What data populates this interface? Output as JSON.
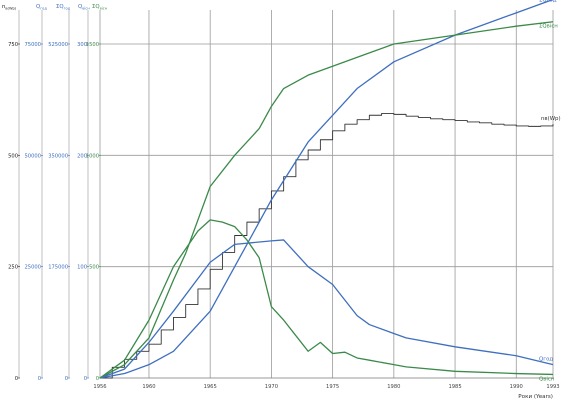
{
  "chart_data": {
    "type": "line",
    "title": "",
    "xlabel": "Роки (Years)",
    "xlim": [
      1956,
      1993
    ],
    "x_ticks": [
      "1956",
      "1960",
      "1965",
      "1970",
      "1975",
      "1980",
      "1985",
      "1990",
      "1993"
    ],
    "grid": true,
    "axes": [
      {
        "label": "n",
        "label_sub": "в(Wр)",
        "color": "#222222",
        "ticks": [
          "0",
          "250",
          "500",
          "750"
        ]
      },
      {
        "label": "Q",
        "label_sub": "год",
        "color": "#3f6fbf",
        "ticks": [
          "0",
          "25000",
          "50000",
          "75000"
        ]
      },
      {
        "label": "ΣQ",
        "label_sub": "год",
        "color": "#3f6fbf",
        "ticks": [
          "0",
          "175000",
          "350000",
          "525000"
        ]
      },
      {
        "label": "Q",
        "label_sub": "вісн",
        "color": "#3f6fbf",
        "ticks": [
          "0",
          "100",
          "200",
          "300"
        ]
      },
      {
        "label": "ΣQ",
        "label_sub": "вісн",
        "color": "#3b8a4a",
        "ticks": [
          "0",
          "500",
          "1000",
          "1500"
        ]
      }
    ],
    "series": [
      {
        "name": "nв(Wр)",
        "color": "#333333",
        "style": "step",
        "x": [
          1956,
          1957,
          1958,
          1959,
          1960,
          1961,
          1962,
          1963,
          1964,
          1965,
          1966,
          1967,
          1968,
          1969,
          1970,
          1971,
          1972,
          1973,
          1974,
          1975,
          1976,
          1977,
          1978,
          1979,
          1980,
          1981,
          1982,
          1983,
          1984,
          1985,
          1986,
          1987,
          1988,
          1989,
          1990,
          1991,
          1992,
          1993
        ],
        "y": [
          0,
          24,
          42,
          60,
          76,
          108,
          136,
          165,
          200,
          244,
          282,
          320,
          350,
          380,
          420,
          452,
          490,
          512,
          535,
          555,
          570,
          580,
          590,
          594,
          592,
          588,
          585,
          582,
          580,
          578,
          575,
          573,
          570,
          568,
          566,
          565,
          566,
          570
        ]
      },
      {
        "name": "ΣQгод",
        "color": "#3f6fbf",
        "style": "line",
        "x": [
          1956,
          1958,
          1960,
          1962,
          1965,
          1968,
          1970,
          1973,
          1975,
          1977,
          1980,
          1985,
          1990,
          1993
        ],
        "y": [
          0,
          10,
          30,
          60,
          150,
          300,
          400,
          530,
          590,
          650,
          710,
          770,
          820,
          850
        ]
      },
      {
        "name": "ΣQвісн",
        "color": "#3b8a4a",
        "style": "line",
        "x": [
          1956,
          1958,
          1960,
          1962,
          1963,
          1965,
          1967,
          1969,
          1970,
          1971,
          1973,
          1975,
          1978,
          1980,
          1985,
          1990,
          1993
        ],
        "y": [
          0,
          30,
          90,
          220,
          280,
          430,
          500,
          560,
          610,
          650,
          680,
          700,
          730,
          750,
          770,
          790,
          800
        ]
      },
      {
        "name": "Qгод",
        "color": "#3f6fbf",
        "style": "line",
        "x": [
          1956,
          1958,
          1960,
          1962,
          1965,
          1967,
          1970,
          1971,
          1973,
          1975,
          1977,
          1978,
          1980,
          1981,
          1985,
          1990,
          1993
        ],
        "y": [
          0,
          20,
          80,
          150,
          260,
          300,
          308,
          310,
          250,
          210,
          140,
          120,
          100,
          90,
          70,
          50,
          30
        ]
      },
      {
        "name": "Qвісн",
        "color": "#3b8a4a",
        "style": "line",
        "x": [
          1956,
          1958,
          1960,
          1962,
          1964,
          1965,
          1966,
          1967,
          1968,
          1969,
          1970,
          1971,
          1972,
          1973,
          1974,
          1975,
          1976,
          1977,
          1978,
          1980,
          1981,
          1985,
          1990,
          1993
        ],
        "y": [
          0,
          40,
          130,
          250,
          330,
          355,
          350,
          340,
          310,
          270,
          160,
          130,
          95,
          60,
          80,
          55,
          58,
          45,
          40,
          30,
          25,
          15,
          10,
          8
        ]
      }
    ]
  }
}
